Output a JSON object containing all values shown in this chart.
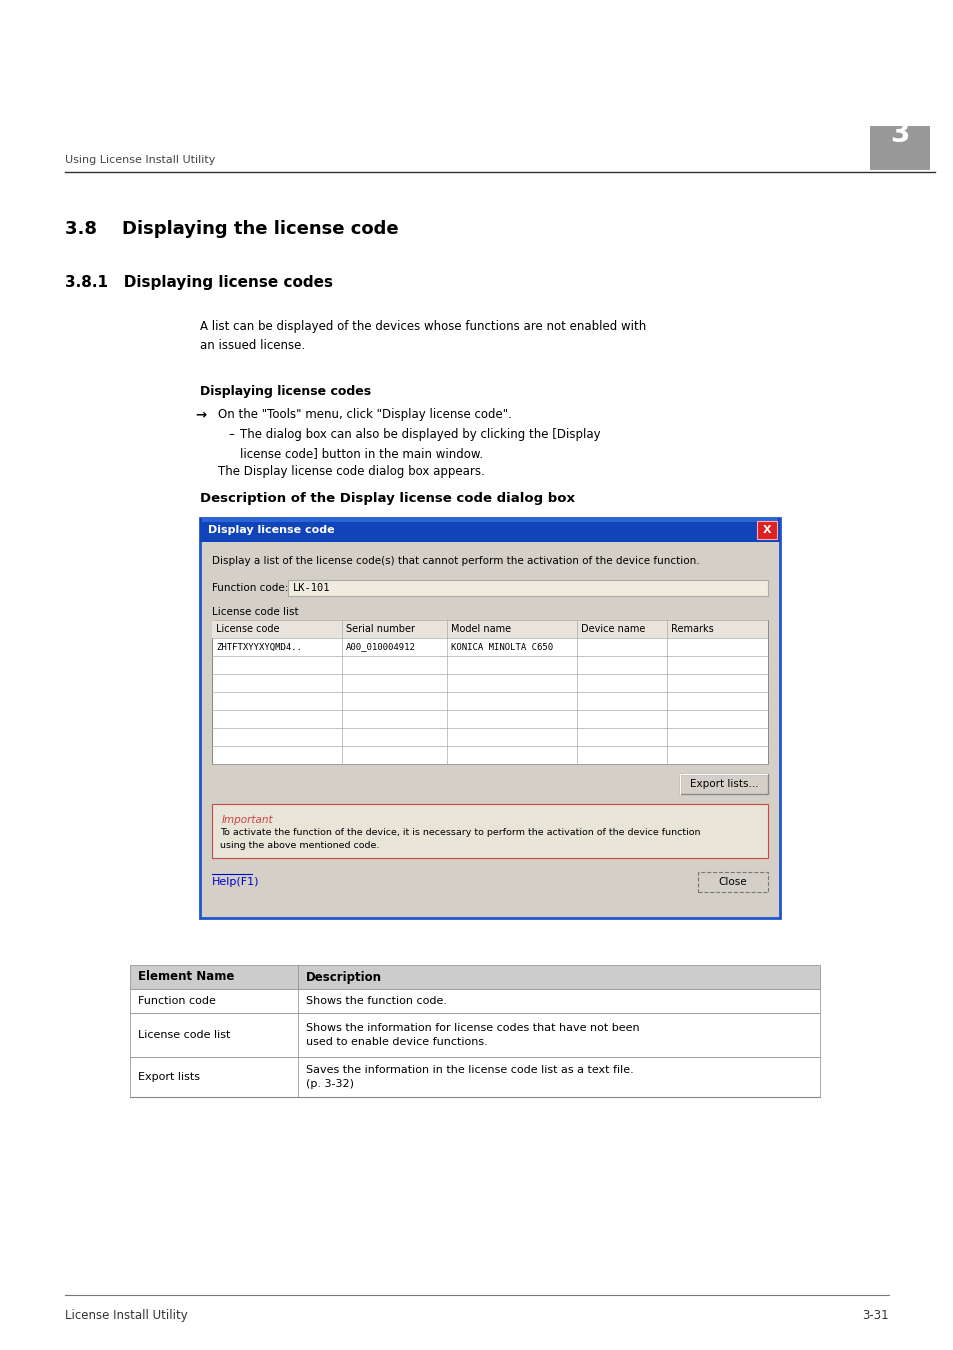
{
  "bg_color": "#ffffff",
  "header_text": "Using License Install Utility",
  "header_num": "3",
  "section_title": "3.8    Displaying the license code",
  "subsection_title": "3.8.1   Displaying license codes",
  "para1": "A list can be displayed of the devices whose functions are not enabled with\nan issued license.",
  "bold_heading": "Displaying license codes",
  "arrow_text": "On the \"Tools\" menu, click \"Display license code\".",
  "dash_text": "The dialog box can also be displayed by clicking the [Display\nlicense code] button in the main window.",
  "conclusion_text": "The Display license code dialog box appears.",
  "dialog_heading": "Description of the Display license code dialog box",
  "dialog_title": "Display license code",
  "dialog_desc": "Display a list of the license code(s) that cannot perform the activation of the device function.",
  "func_label": "Function code:",
  "func_value": "LK-101",
  "lc_list_label": "License code list",
  "table_headers": [
    "License code",
    "Serial number",
    "Model name",
    "Device name",
    "Remarks"
  ],
  "table_row": [
    "ZHTFTXYYXYQMD4..",
    "A00_010004912",
    "KONICA MINOLTA C650",
    "",
    ""
  ],
  "export_btn": "Export lists...",
  "important_label": "Important",
  "important_text": "To activate the function of the device, it is necessary to perform the activation of the device function\nusing the above mentioned code.",
  "help_link": "Help(F1)",
  "close_btn": "Close",
  "desc_table": [
    [
      "Element Name",
      "Description"
    ],
    [
      "Function code",
      "Shows the function code."
    ],
    [
      "License code list",
      "Shows the information for license codes that have not been\nused to enable device functions."
    ],
    [
      "Export lists",
      "Saves the information in the license code list as a text file.\n(p. 3-32)"
    ]
  ],
  "footer_left": "License Install Utility",
  "footer_right": "3-31"
}
